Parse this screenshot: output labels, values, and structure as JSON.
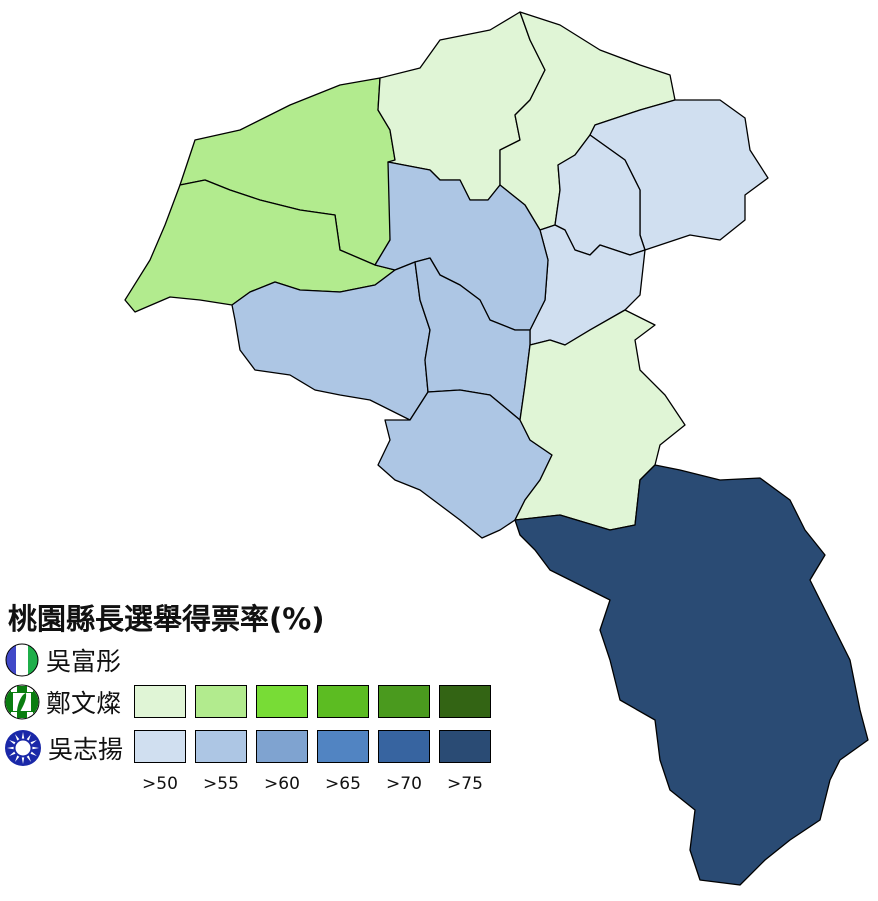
{
  "title": "桃園縣長選舉得票率(%)",
  "candidates": [
    {
      "name": "吳富彤",
      "icon": "party-emblem-blue-white-green",
      "colors": []
    },
    {
      "name": "鄭文燦",
      "icon": "dpp-emblem",
      "colors": [
        "#e0f5d6",
        "#b2eb8e",
        "#78dc36",
        "#5cbc22",
        "#4a9a1e",
        "#336414"
      ]
    },
    {
      "name": "吳志揚",
      "icon": "kmt-emblem",
      "colors": [
        "#d0dff0",
        "#adc6e4",
        "#7fa3d0",
        "#5184c2",
        "#3764a0",
        "#2a4b74"
      ]
    }
  ],
  "thresholds": [
    ">50",
    ">55",
    ">60",
    ">65",
    ">70",
    ">75"
  ],
  "districts": [
    {
      "winner": "鄭文燦",
      "bin": ">55"
    },
    {
      "winner": "鄭文燦",
      "bin": ">55"
    },
    {
      "winner": "鄭文燦",
      "bin": ">50"
    },
    {
      "winner": "鄭文燦",
      "bin": ">50"
    },
    {
      "winner": "吳志揚",
      "bin": ">50"
    },
    {
      "winner": "吳志揚",
      "bin": ">50"
    },
    {
      "winner": "吳志揚",
      "bin": ">50"
    },
    {
      "winner": "吳志揚",
      "bin": ">55"
    },
    {
      "winner": "吳志揚",
      "bin": ">55"
    },
    {
      "winner": "吳志揚",
      "bin": ">55"
    },
    {
      "winner": "吳志揚",
      "bin": ">55"
    },
    {
      "winner": "鄭文燦",
      "bin": ">50"
    },
    {
      "winner": "吳志揚",
      "bin": ">75"
    }
  ]
}
